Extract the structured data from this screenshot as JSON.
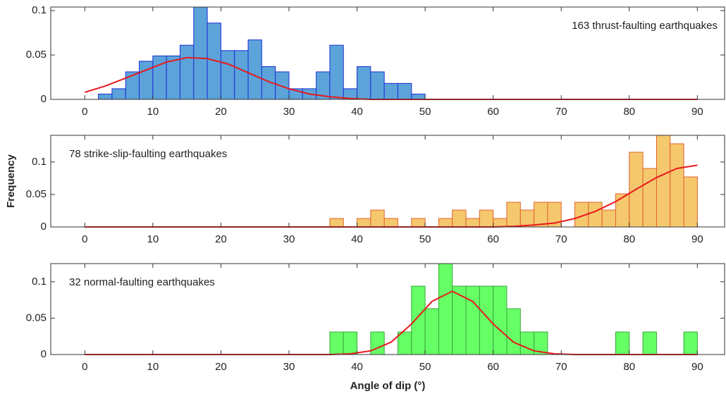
{
  "chart_data": [
    {
      "type": "histogram",
      "annotation": "163 thrust-faulting earthquakes",
      "annotation_loc": "upper right",
      "bins": [
        2,
        4,
        6,
        8,
        10,
        12,
        14,
        16,
        18,
        20,
        22,
        24,
        26,
        28,
        30,
        32,
        34,
        36,
        38,
        40,
        42,
        44,
        46,
        48,
        50
      ],
      "values": [
        0.006,
        0.012,
        0.031,
        0.043,
        0.049,
        0.049,
        0.061,
        0.104,
        0.086,
        0.055,
        0.055,
        0.067,
        0.037,
        0.031,
        0.012,
        0.012,
        0.031,
        0.061,
        0.012,
        0.037,
        0.031,
        0.018,
        0.018,
        0.006
      ],
      "color": "#5ba3d9",
      "edgecolor": "#1f2fd6",
      "fit": {
        "x": [
          0,
          3,
          6,
          9,
          12,
          15,
          18,
          21,
          24,
          27,
          30,
          33,
          36,
          39,
          42,
          45,
          48,
          51,
          54,
          57,
          60,
          63,
          66,
          69,
          72,
          75,
          78,
          81,
          84,
          87,
          90
        ],
        "values": [
          0.008,
          0.015,
          0.024,
          0.033,
          0.042,
          0.047,
          0.046,
          0.04,
          0.03,
          0.02,
          0.012,
          0.006,
          0.003,
          0.001,
          0,
          0,
          0,
          0,
          0,
          0,
          0,
          0,
          0,
          0,
          0,
          0,
          0,
          0,
          0,
          0,
          0
        ],
        "color": "#e8191c"
      },
      "xlim": [
        -5,
        94
      ],
      "ylim": [
        0,
        0.104
      ],
      "xticks": [
        0,
        10,
        20,
        30,
        40,
        50,
        60,
        70,
        80,
        90
      ],
      "yticks": [
        0,
        0.05,
        0.1
      ]
    },
    {
      "type": "histogram",
      "annotation": "78 strike-slip-faulting earthquakes",
      "annotation_loc": "upper left",
      "ylabel": "Frequency",
      "bins": [
        36,
        38,
        40,
        42,
        44,
        46,
        48,
        50,
        52,
        54,
        56,
        58,
        60,
        62,
        64,
        66,
        68,
        70,
        72,
        74,
        76,
        78,
        80,
        82,
        84,
        86,
        88,
        90
      ],
      "values": [
        0.013,
        0,
        0.013,
        0.026,
        0.013,
        0,
        0.013,
        0,
        0.013,
        0.026,
        0.013,
        0.026,
        0.013,
        0.038,
        0.026,
        0.038,
        0.038,
        0,
        0.038,
        0.038,
        0.026,
        0.051,
        0.115,
        0.09,
        0.141,
        0.128,
        0.077
      ],
      "color": "#f5c86e",
      "edgecolor": "#e0622a",
      "fit": {
        "x": [
          0,
          3,
          6,
          9,
          12,
          15,
          18,
          21,
          24,
          27,
          30,
          33,
          36,
          39,
          42,
          45,
          48,
          51,
          54,
          57,
          60,
          63,
          66,
          69,
          72,
          75,
          78,
          81,
          84,
          87,
          90
        ],
        "values": [
          0,
          0,
          0,
          0,
          0,
          0,
          0,
          0,
          0,
          0,
          0,
          0,
          0,
          0,
          0,
          0,
          0,
          0,
          0,
          0,
          0,
          0.001,
          0.003,
          0.006,
          0.013,
          0.024,
          0.039,
          0.058,
          0.076,
          0.09,
          0.095
        ],
        "color": "#e8191c"
      },
      "xlim": [
        -5,
        94
      ],
      "ylim": [
        0,
        0.141
      ],
      "xticks": [
        0,
        10,
        20,
        30,
        40,
        50,
        60,
        70,
        80,
        90
      ],
      "yticks": [
        0,
        0.05,
        0.1
      ]
    },
    {
      "type": "histogram",
      "annotation": "32 normal-faulting earthquakes",
      "annotation_loc": "upper left",
      "xlabel": "Angle of dip (°)",
      "bins": [
        36,
        38,
        40,
        42,
        44,
        46,
        48,
        50,
        52,
        54,
        56,
        58,
        60,
        62,
        64,
        66,
        68,
        70,
        72,
        74,
        76,
        78,
        80,
        82,
        84,
        86,
        88,
        90
      ],
      "values": [
        0.031,
        0.031,
        0,
        0.031,
        0,
        0.031,
        0.094,
        0.063,
        0.125,
        0.094,
        0.094,
        0.094,
        0.094,
        0.063,
        0.031,
        0.031,
        0,
        0,
        0,
        0,
        0,
        0.031,
        0,
        0.031,
        0,
        0,
        0.031
      ],
      "color": "#66ff66",
      "edgecolor": "#3aa83a",
      "fit": {
        "x": [
          0,
          3,
          6,
          9,
          12,
          15,
          18,
          21,
          24,
          27,
          30,
          33,
          36,
          39,
          42,
          45,
          48,
          51,
          54,
          57,
          60,
          63,
          66,
          69,
          72,
          75,
          78,
          81,
          84,
          87,
          90
        ],
        "values": [
          0,
          0,
          0,
          0,
          0,
          0,
          0,
          0,
          0,
          0,
          0,
          0,
          0,
          0.001,
          0.005,
          0.017,
          0.042,
          0.073,
          0.087,
          0.073,
          0.042,
          0.017,
          0.005,
          0.001,
          0,
          0,
          0,
          0,
          0,
          0,
          0
        ],
        "color": "#e8191c"
      },
      "xlim": [
        -5,
        94
      ],
      "ylim": [
        0,
        0.125
      ],
      "xticks": [
        0,
        10,
        20,
        30,
        40,
        50,
        60,
        70,
        80,
        90
      ],
      "yticks": [
        0,
        0.05,
        0.1
      ]
    }
  ]
}
